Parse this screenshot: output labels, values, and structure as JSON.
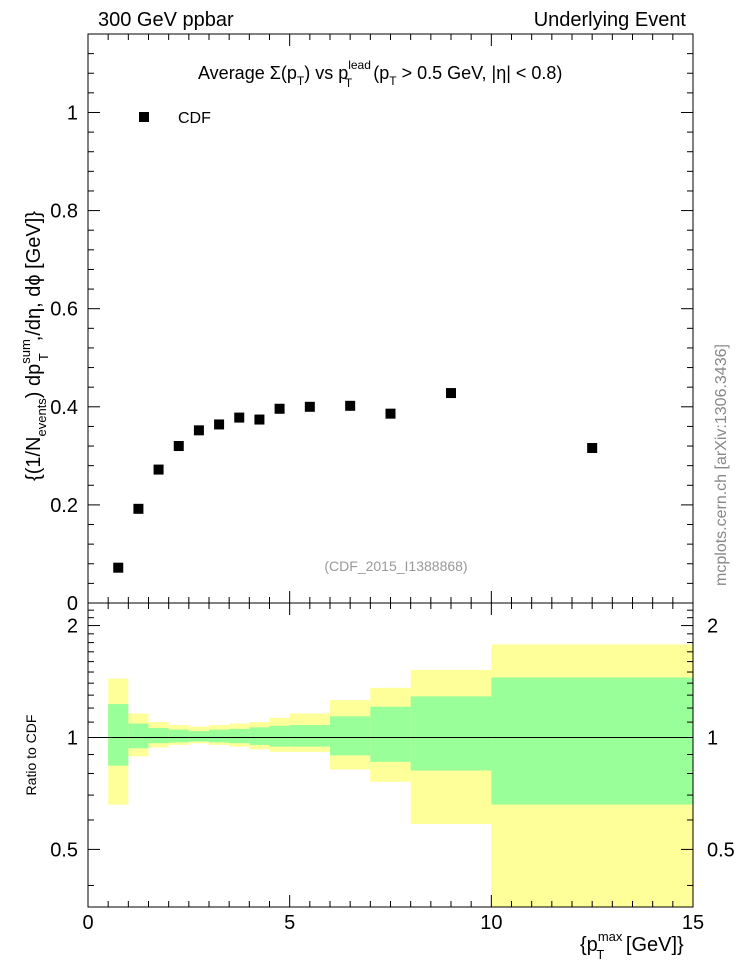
{
  "header": {
    "left": "300 GeV ppbar",
    "right": "Underlying Event"
  },
  "watermark": "mcplots.cern.ch [arXiv:1306.3436]",
  "chart_data": [
    {
      "type": "scatter",
      "panel": "main",
      "title": {
        "prefix": "Average ",
        "sigma": "Σ(p",
        "t_sub": "T",
        "vs": ") vs p",
        "lead_sup": "lead",
        "t_sub2": "T",
        "cuts_a": " (p",
        "t_sub3": "T",
        "cuts_b": " > 0.5 GeV, |η| < 0.8)"
      },
      "ylabel": {
        "a": "{(1/N",
        "events_sub": "events",
        "b": ") dp",
        "sum_sup": "sum",
        "t_sub": "T",
        "c": ",/dη, dϕ [GeV]}"
      },
      "annotation": "(CDF_2015_I1388868)",
      "legend": [
        {
          "label": "CDF",
          "marker": "square",
          "color": "#000000"
        }
      ],
      "xlim": [
        0,
        15
      ],
      "ylim": [
        0,
        1.16
      ],
      "yticks": [
        0,
        0.2,
        0.4,
        0.6,
        0.8,
        1
      ],
      "ytick_labels": [
        "0",
        "0.2",
        "0.4",
        "0.6",
        "0.8",
        "1"
      ],
      "series": [
        {
          "name": "CDF",
          "x": [
            0.75,
            1.25,
            1.75,
            2.25,
            2.75,
            3.25,
            3.75,
            4.25,
            4.75,
            5.5,
            6.5,
            7.5,
            9.0,
            12.5
          ],
          "y": [
            0.072,
            0.192,
            0.272,
            0.32,
            0.352,
            0.364,
            0.378,
            0.374,
            0.396,
            0.4,
            0.402,
            0.386,
            0.428,
            0.316
          ]
        }
      ]
    },
    {
      "type": "area",
      "panel": "ratio",
      "ylabel": "Ratio to CDF",
      "xlabel": {
        "a": "{p",
        "max_sup": "max",
        "t_sub": "T",
        "b": " [GeV]}"
      },
      "xlim": [
        0,
        15
      ],
      "ylim": [
        0.35,
        2.3
      ],
      "xticks": [
        0,
        5,
        10,
        15
      ],
      "xtick_labels": [
        "0",
        "5",
        "10",
        "15"
      ],
      "yticks": [
        0.5,
        1,
        2
      ],
      "ytick_labels": [
        "0.5",
        "1",
        "2"
      ],
      "reference_line": 1,
      "bins": [
        [
          0.5,
          1.0
        ],
        [
          1.0,
          1.5
        ],
        [
          1.5,
          2.0
        ],
        [
          2.0,
          2.5
        ],
        [
          2.5,
          3.0
        ],
        [
          3.0,
          3.5
        ],
        [
          3.5,
          4.0
        ],
        [
          4.0,
          4.5
        ],
        [
          4.5,
          5.0
        ],
        [
          5.0,
          6.0
        ],
        [
          6.0,
          7.0
        ],
        [
          7.0,
          8.0
        ],
        [
          8.0,
          10.0
        ],
        [
          10.0,
          15.0
        ]
      ],
      "bands": [
        {
          "name": "total uncertainty",
          "color": "#ffff99",
          "low": [
            0.66,
            0.89,
            0.94,
            0.955,
            0.965,
            0.955,
            0.945,
            0.93,
            0.915,
            0.915,
            0.82,
            0.76,
            0.585,
            0.35
          ],
          "high": [
            1.44,
            1.16,
            1.1,
            1.08,
            1.07,
            1.08,
            1.09,
            1.1,
            1.13,
            1.16,
            1.26,
            1.36,
            1.52,
            1.78
          ]
        },
        {
          "name": "statistical uncertainty",
          "color": "#99ff99",
          "low": [
            0.84,
            0.935,
            0.965,
            0.97,
            0.975,
            0.97,
            0.965,
            0.955,
            0.945,
            0.945,
            0.895,
            0.86,
            0.815,
            0.66
          ],
          "high": [
            1.23,
            1.09,
            1.06,
            1.05,
            1.04,
            1.05,
            1.055,
            1.065,
            1.075,
            1.08,
            1.14,
            1.21,
            1.29,
            1.45
          ]
        }
      ]
    }
  ]
}
